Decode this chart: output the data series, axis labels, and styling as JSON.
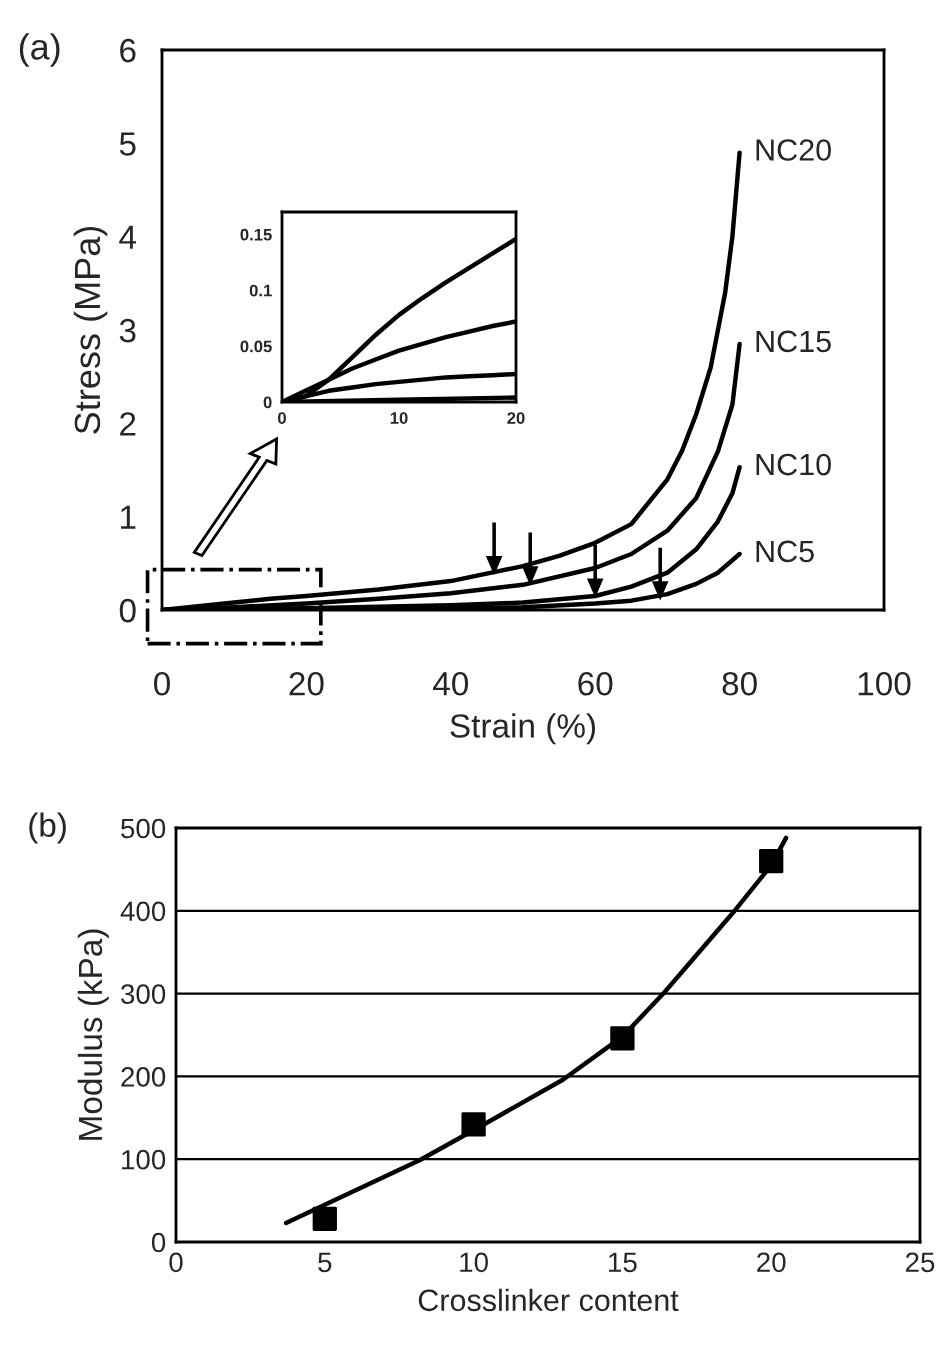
{
  "chart_data": [
    {
      "type": "line",
      "title": "(a)",
      "xlabel": "Strain (%)",
      "ylabel": "Stress (MPa)",
      "xlim": [
        0,
        100
      ],
      "ylim": [
        0,
        6
      ],
      "xticks": [
        0,
        20,
        40,
        60,
        80,
        100
      ],
      "yticks": [
        0,
        1,
        2,
        3,
        4,
        5,
        6
      ],
      "grid": false,
      "legend": false,
      "line_style": "solid",
      "series": [
        {
          "name": "NC20",
          "color": "#000000",
          "x": [
            0,
            5,
            10,
            15,
            20,
            30,
            40,
            50,
            55,
            60,
            65,
            70,
            72,
            74,
            76,
            78,
            79,
            80
          ],
          "values": [
            0,
            0.04,
            0.08,
            0.12,
            0.15,
            0.22,
            0.31,
            0.47,
            0.58,
            0.72,
            0.92,
            1.4,
            1.7,
            2.1,
            2.6,
            3.4,
            4.0,
            4.9
          ]
        },
        {
          "name": "NC15",
          "color": "#000000",
          "x": [
            0,
            10,
            20,
            30,
            40,
            50,
            60,
            65,
            70,
            74,
            77,
            79,
            80
          ],
          "values": [
            0,
            0.03,
            0.07,
            0.12,
            0.18,
            0.27,
            0.45,
            0.6,
            0.85,
            1.2,
            1.7,
            2.2,
            2.85
          ]
        },
        {
          "name": "NC10",
          "color": "#000000",
          "x": [
            0,
            20,
            40,
            50,
            60,
            65,
            70,
            74,
            77,
            79,
            80
          ],
          "values": [
            0,
            0.02,
            0.05,
            0.08,
            0.15,
            0.25,
            0.4,
            0.65,
            0.95,
            1.25,
            1.53
          ]
        },
        {
          "name": "NC5",
          "color": "#000000",
          "x": [
            0,
            20,
            40,
            50,
            60,
            65,
            70,
            74,
            77,
            80
          ],
          "values": [
            0,
            0.01,
            0.02,
            0.03,
            0.07,
            0.1,
            0.17,
            0.28,
            0.4,
            0.6
          ]
        }
      ]
    },
    {
      "type": "line",
      "xlim": [
        0,
        20
      ],
      "ylim": [
        0,
        0.17
      ],
      "xticks": [
        0,
        10,
        20
      ],
      "yticks": [
        0,
        0.05,
        0.1,
        0.15
      ],
      "grid": false,
      "legend": false,
      "line_style": "solid",
      "series": [
        {
          "color": "#000000",
          "x": [
            0,
            2,
            4,
            6,
            8,
            10,
            12,
            14,
            16,
            18,
            20
          ],
          "values": [
            0,
            0.005,
            0.02,
            0.04,
            0.06,
            0.078,
            0.093,
            0.107,
            0.12,
            0.133,
            0.146
          ]
        },
        {
          "color": "#000000",
          "x": [
            0,
            2,
            4,
            6,
            8,
            10,
            12,
            14,
            16,
            18,
            20
          ],
          "values": [
            0,
            0.01,
            0.02,
            0.03,
            0.038,
            0.046,
            0.052,
            0.058,
            0.063,
            0.068,
            0.072
          ]
        },
        {
          "color": "#000000",
          "x": [
            0,
            2,
            4,
            6,
            8,
            10,
            12,
            14,
            16,
            18,
            20
          ],
          "values": [
            0,
            0.005,
            0.01,
            0.013,
            0.016,
            0.018,
            0.02,
            0.022,
            0.023,
            0.024,
            0.025
          ]
        },
        {
          "color": "#000000",
          "x": [
            0,
            10,
            20
          ],
          "values": [
            0,
            0.002,
            0.004
          ]
        }
      ]
    },
    {
      "type": "scatter",
      "title": "(b)",
      "xlabel": "Crosslinker content",
      "ylabel": "Modulus (kPa)",
      "xlim": [
        0,
        25
      ],
      "ylim": [
        0,
        500
      ],
      "xticks": [
        0,
        5,
        10,
        15,
        20,
        25
      ],
      "yticks": [
        0,
        100,
        200,
        300,
        400,
        500
      ],
      "grid": "y",
      "legend": false,
      "series": [
        {
          "type": "scatter",
          "marker": "square",
          "color": "#000000",
          "x": [
            5,
            10,
            15,
            20
          ],
          "values": [
            28,
            142,
            246,
            460
          ]
        },
        {
          "type": "line",
          "marker": "none",
          "line_style": "solid",
          "color": "#000000",
          "x": [
            3.7,
            5,
            8.2,
            10,
            13,
            15,
            16.4,
            18.7,
            20,
            20.5
          ],
          "values": [
            23,
            45,
            99,
            135,
            196,
            248,
            301,
            397,
            455,
            488
          ]
        }
      ]
    }
  ]
}
